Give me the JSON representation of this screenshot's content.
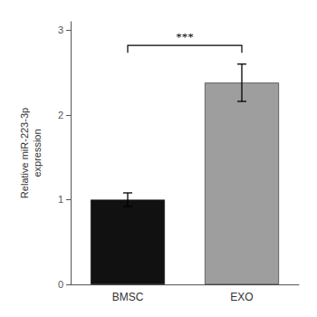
{
  "chart_data": {
    "type": "bar",
    "categories": [
      "BMSC",
      "EXO"
    ],
    "values": [
      1.0,
      2.38
    ],
    "errors": [
      0.08,
      0.22
    ],
    "colors": [
      "#111111",
      "#9e9e9e"
    ],
    "ylabel": "Relative miR-223-3p\nexpression",
    "ylim": [
      0,
      3.1
    ],
    "yticks": [
      0,
      1,
      2,
      3
    ],
    "grid": false,
    "annotations": [
      {
        "type": "bracket",
        "text": "***",
        "from": "BMSC",
        "to": "EXO",
        "y": 2.82
      }
    ]
  }
}
